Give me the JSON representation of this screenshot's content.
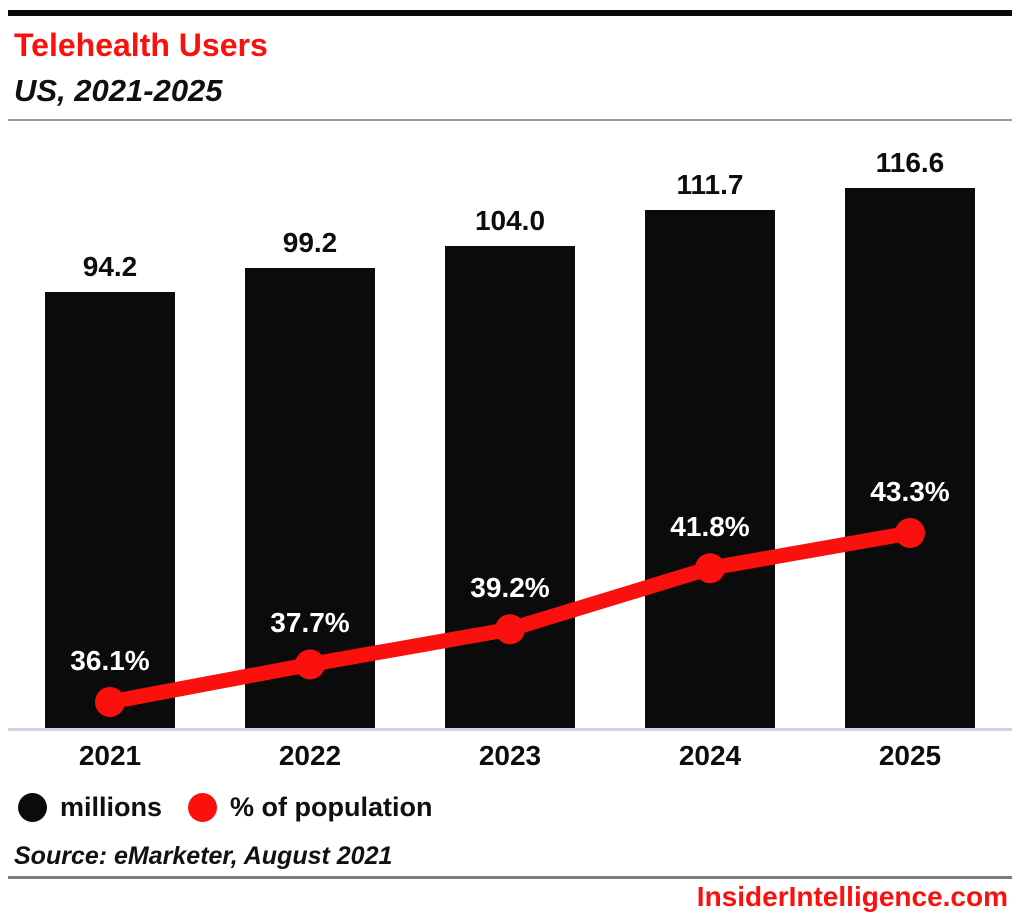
{
  "header": {
    "title": "Telehealth Users",
    "subtitle": "US, 2021-2025"
  },
  "chart_data": {
    "type": "combo-bar-line",
    "title": "Telehealth Users",
    "subtitle": "US, 2021-2025",
    "categories": [
      "2021",
      "2022",
      "2023",
      "2024",
      "2025"
    ],
    "series": [
      {
        "name": "millions",
        "type": "bar",
        "color": "#0b0b0b",
        "values": [
          94.2,
          99.2,
          104.0,
          111.7,
          116.6
        ],
        "labels": [
          "94.2",
          "99.2",
          "104.0",
          "111.7",
          "116.6"
        ]
      },
      {
        "name": "% of population",
        "type": "line",
        "color": "#fa100c",
        "values": [
          36.1,
          37.7,
          39.2,
          41.8,
          43.3
        ],
        "labels": [
          "36.1%",
          "37.7%",
          "39.2%",
          "41.8%",
          "43.3%"
        ]
      }
    ],
    "grid": false,
    "y_axis_visible": false,
    "value_labels_shown": true,
    "legend_position": "bottom-left"
  },
  "colors": {
    "accent_red": "#fa100c",
    "bar_black": "#0b0b0b",
    "axis_line": "#ccd3e6",
    "header_divider": "#9b9b9b",
    "footer_divider": "#7d7d7d",
    "percent_label_text": "#ffffff",
    "text": "#0d0d0d"
  },
  "source": "Source: eMarketer, August 2021",
  "footer": {
    "site": "InsiderIntelligence.com"
  }
}
